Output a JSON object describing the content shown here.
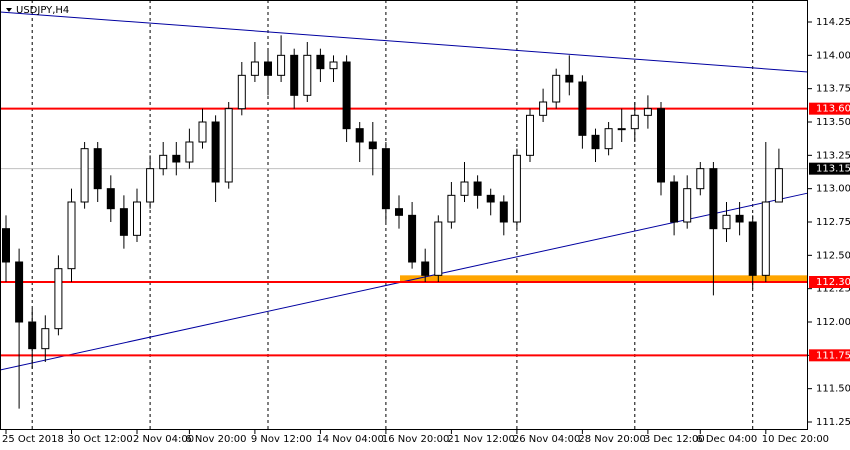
{
  "chart_data": {
    "type": "candlestick",
    "title": "USDJPY,H4",
    "categories": [
      "25 Oct 2018",
      null,
      null,
      null,
      null,
      "30 Oct 12:00",
      null,
      null,
      null,
      null,
      "2 Nov 04:00",
      null,
      null,
      null,
      "6 Nov 20:00",
      null,
      null,
      null,
      null,
      "9 Nov 12:00",
      null,
      null,
      null,
      null,
      "14 Nov 04:00",
      null,
      null,
      null,
      null,
      "16 Nov 20:00",
      null,
      null,
      null,
      null,
      "21 Nov 12:00",
      null,
      null,
      null,
      null,
      "26 Nov 04:00",
      null,
      null,
      null,
      null,
      "28 Nov 20:00",
      null,
      null,
      null,
      null,
      "3 Dec 12:00",
      null,
      null,
      null,
      "6 Dec 04:00",
      null,
      null,
      null,
      null,
      "10 Dec 20:00",
      null
    ],
    "open": [
      112.7,
      112.45,
      112.0,
      111.8,
      111.95,
      112.4,
      112.9,
      113.3,
      113.0,
      112.85,
      112.65,
      112.9,
      113.15,
      113.25,
      113.2,
      113.35,
      113.5,
      113.05,
      113.6,
      113.85,
      113.95,
      113.85,
      114.0,
      113.7,
      114.0,
      113.9,
      113.95,
      113.45,
      113.35,
      113.3,
      112.85,
      112.8,
      112.45,
      112.35,
      112.75,
      112.95,
      113.05,
      112.95,
      112.9,
      112.75,
      113.25,
      113.55,
      113.65,
      113.85,
      113.8,
      113.4,
      113.3,
      113.45,
      113.45,
      113.55,
      113.6,
      113.05,
      112.75,
      113.0,
      113.15,
      112.7,
      112.8,
      112.75,
      112.35,
      112.9
    ],
    "high": [
      112.8,
      112.55,
      112.1,
      112.05,
      112.5,
      113.0,
      113.35,
      113.35,
      113.1,
      112.95,
      113.0,
      113.25,
      113.35,
      113.35,
      113.45,
      113.6,
      113.55,
      113.65,
      113.95,
      114.1,
      114.05,
      114.15,
      114.05,
      114.1,
      114.05,
      114.0,
      114.0,
      113.5,
      113.5,
      113.35,
      112.95,
      112.9,
      112.55,
      112.8,
      113.05,
      113.2,
      113.1,
      113.0,
      112.95,
      113.3,
      113.6,
      113.75,
      113.9,
      114.0,
      113.85,
      113.45,
      113.5,
      113.6,
      113.65,
      113.7,
      113.65,
      113.1,
      113.1,
      113.2,
      113.2,
      112.9,
      112.9,
      112.8,
      113.35,
      113.3
    ],
    "low": [
      112.3,
      111.35,
      111.65,
      111.7,
      111.9,
      112.3,
      112.85,
      112.9,
      112.75,
      112.55,
      112.6,
      112.85,
      113.1,
      113.1,
      113.15,
      113.3,
      112.9,
      113.0,
      113.55,
      113.8,
      113.7,
      113.8,
      113.6,
      113.65,
      113.8,
      113.8,
      113.35,
      113.2,
      113.1,
      112.75,
      112.7,
      112.4,
      112.3,
      112.3,
      112.7,
      112.9,
      112.85,
      112.8,
      112.65,
      112.7,
      113.2,
      113.5,
      113.6,
      113.7,
      113.3,
      113.2,
      113.25,
      113.35,
      113.35,
      113.45,
      112.95,
      112.65,
      112.7,
      112.95,
      112.2,
      112.6,
      112.65,
      112.25,
      112.3,
      112.9
    ],
    "close": [
      112.45,
      112.0,
      111.8,
      111.95,
      112.4,
      112.9,
      113.3,
      113.0,
      112.85,
      112.65,
      112.9,
      113.15,
      113.25,
      113.2,
      113.35,
      113.5,
      113.05,
      113.6,
      113.85,
      113.95,
      113.85,
      114.0,
      113.7,
      114.0,
      113.9,
      113.95,
      113.45,
      113.35,
      113.3,
      112.85,
      112.8,
      112.45,
      112.35,
      112.75,
      112.95,
      113.05,
      112.95,
      112.9,
      112.75,
      113.25,
      113.55,
      113.65,
      113.85,
      113.8,
      113.4,
      113.3,
      113.45,
      113.45,
      113.55,
      113.6,
      113.05,
      112.75,
      113.0,
      113.15,
      112.7,
      112.8,
      112.75,
      112.35,
      112.9,
      113.15
    ],
    "ylim": [
      111.19,
      114.415
    ],
    "yticks": [
      111.25,
      {
        "value": 111.5,
        "label": "111.50"
      },
      111.75,
      {
        "value": 112.0,
        "label": "112.00"
      },
      112.25,
      {
        "value": 112.5,
        "label": "112.50"
      },
      112.75,
      {
        "value": 113.0,
        "label": "113.00"
      },
      113.25,
      {
        "value": 113.5,
        "label": "113.50"
      },
      113.75,
      {
        "value": 114.0,
        "label": "114.00"
      },
      114.25
    ],
    "hlines": [
      {
        "value": 113.6,
        "label": "113.60",
        "color": "#ff0000"
      },
      {
        "value": 112.3,
        "label": "112.30",
        "color": "#ff0000"
      },
      {
        "value": 111.75,
        "label": "111.75",
        "color": "#ff0000"
      },
      {
        "value": 113.15,
        "label": "113.15",
        "color": "#000000"
      }
    ],
    "zone": {
      "from": 112.3,
      "to": 112.35,
      "color": "#ffa500"
    },
    "trendlines": [
      {
        "start": 114.325,
        "end": 113.875,
        "color": "#0000a0"
      },
      {
        "start": 111.64,
        "end": 112.967,
        "color": "#0000a0"
      }
    ],
    "grid": true
  }
}
